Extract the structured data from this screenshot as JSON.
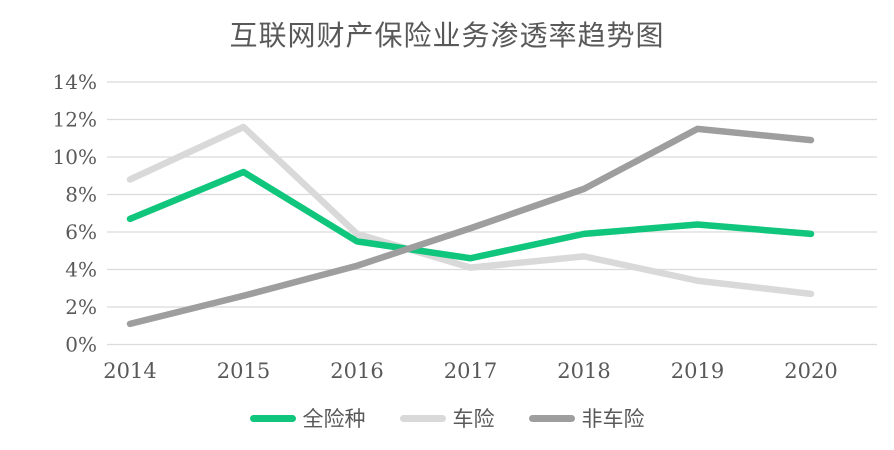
{
  "title": "互联网财产保险业务渗透率趋势图",
  "chart_data": {
    "type": "line",
    "title": "互联网财产保险业务渗透率趋势图",
    "categories": [
      "2014",
      "2015",
      "2016",
      "2017",
      "2018",
      "2019",
      "2020"
    ],
    "series": [
      {
        "name": "全险种",
        "color": "#10C57C",
        "values": [
          6.7,
          9.2,
          5.5,
          4.6,
          5.9,
          6.4,
          5.9
        ]
      },
      {
        "name": "车险",
        "color": "#D9D9D9",
        "values": [
          8.8,
          11.6,
          5.9,
          4.1,
          4.7,
          3.4,
          2.7
        ]
      },
      {
        "name": "非车险",
        "color": "#9E9E9E",
        "values": [
          1.1,
          2.6,
          4.2,
          6.2,
          8.3,
          11.5,
          10.9
        ]
      }
    ],
    "draw_order": [
      1,
      0,
      2
    ],
    "xlabel": "",
    "ylabel": "",
    "ylim": [
      0,
      14
    ],
    "y_tick_step": 2,
    "y_tick_labels": [
      "0%",
      "2%",
      "4%",
      "6%",
      "8%",
      "10%",
      "12%",
      "14%"
    ],
    "grid": "horizontal",
    "gridline_color": "#DBDBDB",
    "text_color": "#595959",
    "legend_position": "bottom"
  }
}
